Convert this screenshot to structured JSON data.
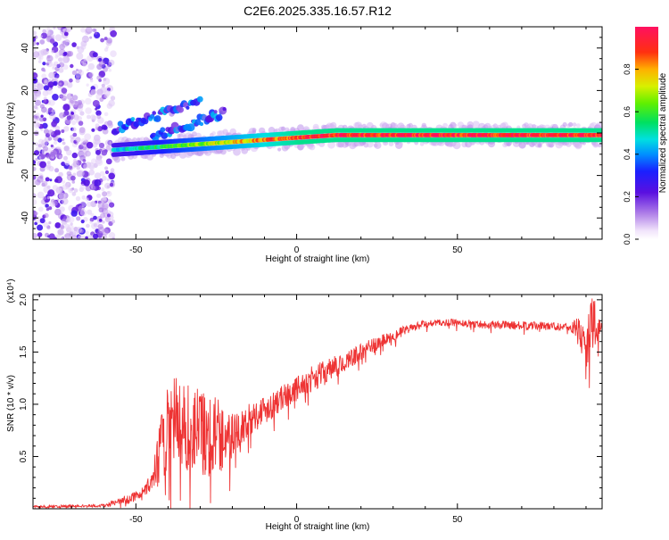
{
  "title": "C2E6.2025.335.16.57.R12",
  "chart_data": [
    {
      "type": "heatmap",
      "xlabel": "Height of straight line (km)",
      "ylabel": "Frequency (Hz)",
      "xlim": [
        -82,
        95
      ],
      "ylim": [
        -50,
        50
      ],
      "xticks": [
        -50,
        0,
        50
      ],
      "yticks": [
        -40,
        -20,
        0,
        20,
        40
      ],
      "colorbar": {
        "label": "Normalized spectral amplitude",
        "range": [
          0,
          1
        ],
        "ticks": [
          0.0,
          0.2,
          0.4,
          0.6,
          0.8
        ]
      },
      "features": [
        {
          "name": "main-ridge",
          "x_from": -57,
          "x_to": 95,
          "freq_start": -8,
          "freq_end": -1,
          "amplitude": 0.95
        },
        {
          "name": "upper-branch-1",
          "x_from": -57,
          "x_to": -30,
          "freq_start": 2,
          "freq_end": 15,
          "amplitude": 0.3
        },
        {
          "name": "upper-branch-2",
          "x_from": -45,
          "x_to": -22,
          "freq_start": -2,
          "freq_end": 10,
          "amplitude": 0.3
        },
        {
          "name": "noise-region",
          "x_from": -82,
          "x_to": -57,
          "freq_start": -50,
          "freq_end": 50,
          "amplitude": 0.2
        }
      ]
    },
    {
      "type": "line",
      "xlabel": "Height of straight line (km)",
      "ylabel": "SNR (10 * v/v)",
      "y_multiplier": "(x10⁴)",
      "xlim": [
        -82,
        95
      ],
      "ylim": [
        0,
        2.05
      ],
      "xticks": [
        -50,
        0,
        50
      ],
      "yticks": [
        0.5,
        1.0,
        1.5,
        2.0
      ],
      "series": [
        {
          "name": "SNR",
          "color": "#ee3333",
          "x": [
            -82,
            -60,
            -55,
            -50,
            -45,
            -43,
            -40,
            -35,
            -30,
            -25,
            -20,
            -15,
            -10,
            -5,
            0,
            5,
            10,
            15,
            20,
            25,
            30,
            35,
            40,
            45,
            50,
            55,
            60,
            65,
            70,
            75,
            80,
            85,
            88,
            90,
            92,
            95
          ],
          "y": [
            0.02,
            0.03,
            0.07,
            0.12,
            0.25,
            0.45,
            0.85,
            0.8,
            0.75,
            0.7,
            0.7,
            0.85,
            0.95,
            1.05,
            1.15,
            1.25,
            1.32,
            1.4,
            1.5,
            1.58,
            1.66,
            1.72,
            1.77,
            1.78,
            1.78,
            1.77,
            1.76,
            1.76,
            1.75,
            1.75,
            1.75,
            1.74,
            1.72,
            1.5,
            1.8,
            1.75
          ],
          "noise_amplitude": [
            0.01,
            0.015,
            0.03,
            0.05,
            0.08,
            0.3,
            0.45,
            0.45,
            0.45,
            0.4,
            0.25,
            0.15,
            0.15,
            0.12,
            0.12,
            0.12,
            0.12,
            0.1,
            0.08,
            0.07,
            0.06,
            0.04,
            0.04,
            0.03,
            0.04,
            0.04,
            0.04,
            0.04,
            0.04,
            0.04,
            0.04,
            0.04,
            0.12,
            0.3,
            0.3,
            0.05
          ]
        }
      ]
    }
  ]
}
